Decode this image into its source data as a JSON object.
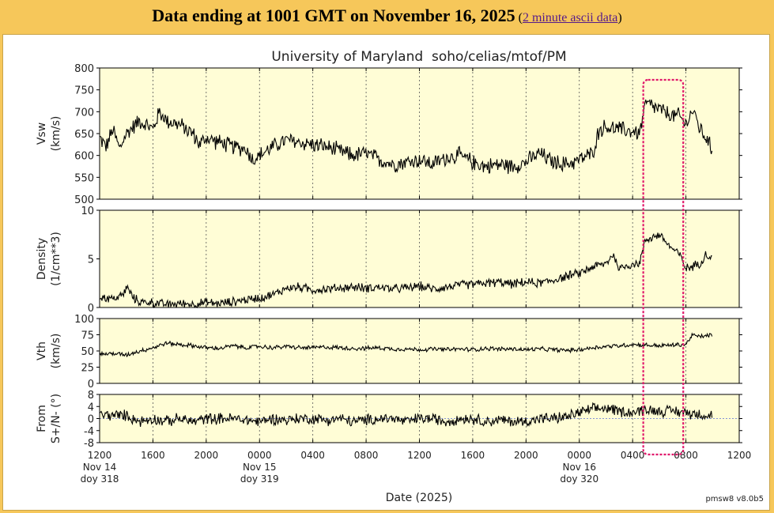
{
  "banner": {
    "title": "Data ending at 1001 GMT on November 16, 2025",
    "open_paren": " (",
    "link_text": "2 minute ascii data",
    "close_paren": ")"
  },
  "chart_data": {
    "type": "line",
    "title": "University of Maryland  soho/celias/mtof/PM",
    "xlabel": "Date (2025)",
    "footer": "pmsw8 v8.0b5",
    "x_range_hours": [
      0,
      48
    ],
    "x_ticks": [
      {
        "h": 0,
        "label": "1200"
      },
      {
        "h": 4,
        "label": "1600"
      },
      {
        "h": 8,
        "label": "2000"
      },
      {
        "h": 12,
        "label": "0000"
      },
      {
        "h": 16,
        "label": "0400"
      },
      {
        "h": 20,
        "label": "0800"
      },
      {
        "h": 24,
        "label": "1200"
      },
      {
        "h": 28,
        "label": "1600"
      },
      {
        "h": 32,
        "label": "2000"
      },
      {
        "h": 36,
        "label": "0000"
      },
      {
        "h": 40,
        "label": "0400"
      },
      {
        "h": 44,
        "label": "0800"
      },
      {
        "h": 48,
        "label": "1200"
      }
    ],
    "date_labels": [
      {
        "h": 0,
        "line1": "Nov 14",
        "line2": "doy 318"
      },
      {
        "h": 12,
        "line1": "Nov 15",
        "line2": "doy 319"
      },
      {
        "h": 36,
        "line1": "Nov 16",
        "line2": "doy 320"
      }
    ],
    "highlight_box_hours": [
      40.8,
      43.8
    ],
    "highlight_color": "#e0196b",
    "panel_bg": "#fffdd6",
    "panels": [
      {
        "name": "vsw",
        "ylabel": [
          "Vsw",
          "(km/s)"
        ],
        "ylim": [
          500,
          800
        ],
        "yticks": [
          500,
          550,
          600,
          650,
          700,
          750,
          800
        ],
        "anchors": [
          [
            0,
            640
          ],
          [
            0.5,
            620
          ],
          [
            1,
            660
          ],
          [
            1.5,
            615
          ],
          [
            2,
            650
          ],
          [
            3,
            680
          ],
          [
            4,
            660
          ],
          [
            4.5,
            700
          ],
          [
            5,
            680
          ],
          [
            6,
            670
          ],
          [
            7,
            650
          ],
          [
            7.5,
            625
          ],
          [
            8,
            640
          ],
          [
            9,
            630
          ],
          [
            10,
            620
          ],
          [
            11,
            615
          ],
          [
            11.5,
            590
          ],
          [
            12,
            600
          ],
          [
            13,
            620
          ],
          [
            14,
            635
          ],
          [
            15,
            630
          ],
          [
            16,
            625
          ],
          [
            17,
            620
          ],
          [
            18,
            610
          ],
          [
            19,
            600
          ],
          [
            20,
            605
          ],
          [
            21,
            590
          ],
          [
            22,
            580
          ],
          [
            23,
            585
          ],
          [
            24,
            590
          ],
          [
            25,
            580
          ],
          [
            26,
            595
          ],
          [
            27,
            600
          ],
          [
            28,
            585
          ],
          [
            29,
            575
          ],
          [
            30,
            580
          ],
          [
            31,
            575
          ],
          [
            32,
            585
          ],
          [
            33,
            605
          ],
          [
            34,
            585
          ],
          [
            35,
            580
          ],
          [
            36,
            590
          ],
          [
            37,
            605
          ],
          [
            37.5,
            660
          ],
          [
            38,
            665
          ],
          [
            39,
            660
          ],
          [
            40,
            655
          ],
          [
            40.5,
            650
          ],
          [
            41,
            720
          ],
          [
            42,
            705
          ],
          [
            43,
            690
          ],
          [
            43.5,
            690
          ],
          [
            44,
            670
          ],
          [
            44.5,
            705
          ],
          [
            45,
            665
          ],
          [
            45.5,
            640
          ],
          [
            46,
            610
          ]
        ],
        "noise": 22,
        "baseline": null
      },
      {
        "name": "density",
        "ylabel": [
          "Density",
          "(1/cm**3)"
        ],
        "ylim": [
          0,
          10
        ],
        "yticks": [
          0,
          5,
          10
        ],
        "anchors": [
          [
            0,
            1.1
          ],
          [
            1,
            0.9
          ],
          [
            1.8,
            1.3
          ],
          [
            2,
            2.2
          ],
          [
            2.5,
            1.0
          ],
          [
            3,
            0.6
          ],
          [
            4,
            0.5
          ],
          [
            5,
            0.3
          ],
          [
            6,
            0.4
          ],
          [
            7,
            0.35
          ],
          [
            8,
            0.5
          ],
          [
            9,
            0.4
          ],
          [
            10,
            0.6
          ],
          [
            11,
            0.8
          ],
          [
            12,
            1.0
          ],
          [
            13,
            1.3
          ],
          [
            14,
            2.0
          ],
          [
            15,
            2.1
          ],
          [
            16,
            1.8
          ],
          [
            17,
            1.9
          ],
          [
            18,
            2.0
          ],
          [
            19,
            2.1
          ],
          [
            20,
            2.0
          ],
          [
            21,
            2.1
          ],
          [
            22,
            1.9
          ],
          [
            23,
            2.0
          ],
          [
            24,
            2.2
          ],
          [
            25,
            1.9
          ],
          [
            26,
            2.1
          ],
          [
            27,
            2.3
          ],
          [
            28,
            2.4
          ],
          [
            29,
            2.5
          ],
          [
            30,
            2.6
          ],
          [
            31,
            2.4
          ],
          [
            32,
            2.6
          ],
          [
            33,
            2.5
          ],
          [
            34,
            2.8
          ],
          [
            35,
            3.2
          ],
          [
            36,
            3.5
          ],
          [
            37,
            4.2
          ],
          [
            38,
            4.5
          ],
          [
            38.5,
            5.5
          ],
          [
            39,
            4.0
          ],
          [
            40,
            4.5
          ],
          [
            40.5,
            4.5
          ],
          [
            41,
            7.0
          ],
          [
            42,
            7.5
          ],
          [
            43,
            6.0
          ],
          [
            43.5,
            5.5
          ],
          [
            44,
            4.0
          ],
          [
            45,
            4.5
          ],
          [
            45.5,
            5.5
          ],
          [
            46,
            5.0
          ]
        ],
        "noise": 0.55,
        "baseline": null
      },
      {
        "name": "vth",
        "ylabel": [
          "Vth",
          "(km/s)"
        ],
        "ylim": [
          0,
          100
        ],
        "yticks": [
          0,
          25,
          50,
          75,
          100
        ],
        "anchors": [
          [
            0,
            45
          ],
          [
            1,
            46
          ],
          [
            2,
            44
          ],
          [
            3,
            50
          ],
          [
            4,
            55
          ],
          [
            5,
            62
          ],
          [
            6,
            60
          ],
          [
            7,
            58
          ],
          [
            8,
            55
          ],
          [
            9,
            54
          ],
          [
            10,
            58
          ],
          [
            11,
            55
          ],
          [
            12,
            57
          ],
          [
            13,
            55
          ],
          [
            14,
            57
          ],
          [
            15,
            55
          ],
          [
            16,
            55
          ],
          [
            17,
            56
          ],
          [
            18,
            55
          ],
          [
            19,
            54
          ],
          [
            20,
            54
          ],
          [
            21,
            55
          ],
          [
            22,
            53
          ],
          [
            23,
            53
          ],
          [
            24,
            52
          ],
          [
            25,
            53
          ],
          [
            26,
            52
          ],
          [
            27,
            53
          ],
          [
            28,
            52
          ],
          [
            29,
            54
          ],
          [
            30,
            53
          ],
          [
            31,
            53
          ],
          [
            32,
            52
          ],
          [
            33,
            53
          ],
          [
            34,
            52
          ],
          [
            35,
            51
          ],
          [
            36,
            52
          ],
          [
            37,
            55
          ],
          [
            38,
            57
          ],
          [
            39,
            58
          ],
          [
            40,
            60
          ],
          [
            41,
            59
          ],
          [
            42,
            58
          ],
          [
            43,
            59
          ],
          [
            44,
            60
          ],
          [
            44.5,
            75
          ],
          [
            45,
            72
          ],
          [
            46,
            75
          ]
        ],
        "noise": 4,
        "baseline": null
      },
      {
        "name": "from",
        "ylabel": [
          "From",
          "S+/N- (°)"
        ],
        "ylim": [
          -8,
          8
        ],
        "yticks": [
          -8,
          -4,
          0,
          4,
          8
        ],
        "anchors": [
          [
            0,
            1.2
          ],
          [
            2,
            1.0
          ],
          [
            3,
            -1
          ],
          [
            4,
            0
          ],
          [
            5,
            -1
          ],
          [
            6,
            0
          ],
          [
            7,
            -1
          ],
          [
            8,
            0
          ],
          [
            9,
            0
          ],
          [
            10,
            0
          ],
          [
            11,
            -0.5
          ],
          [
            12,
            -1
          ],
          [
            13,
            0
          ],
          [
            14,
            -0.5
          ],
          [
            15,
            0
          ],
          [
            16,
            0
          ],
          [
            17,
            -0.5
          ],
          [
            18,
            0
          ],
          [
            19,
            -1
          ],
          [
            20,
            -0.5
          ],
          [
            21,
            0
          ],
          [
            22,
            0
          ],
          [
            23,
            -1
          ],
          [
            24,
            0
          ],
          [
            25,
            0
          ],
          [
            26,
            -1
          ],
          [
            27,
            0
          ],
          [
            28,
            0
          ],
          [
            29,
            -1
          ],
          [
            30,
            -0.5
          ],
          [
            31,
            -1
          ],
          [
            32,
            -1
          ],
          [
            33,
            0
          ],
          [
            34,
            0
          ],
          [
            35,
            0.5
          ],
          [
            36,
            2
          ],
          [
            37,
            3
          ],
          [
            38,
            3.5
          ],
          [
            39,
            2.5
          ],
          [
            40,
            2
          ],
          [
            41,
            3
          ],
          [
            42,
            2.5
          ],
          [
            43,
            2.5
          ],
          [
            44,
            2
          ],
          [
            45,
            1.5
          ],
          [
            46,
            1.0
          ]
        ],
        "noise": 2.2,
        "baseline": 0
      }
    ]
  }
}
